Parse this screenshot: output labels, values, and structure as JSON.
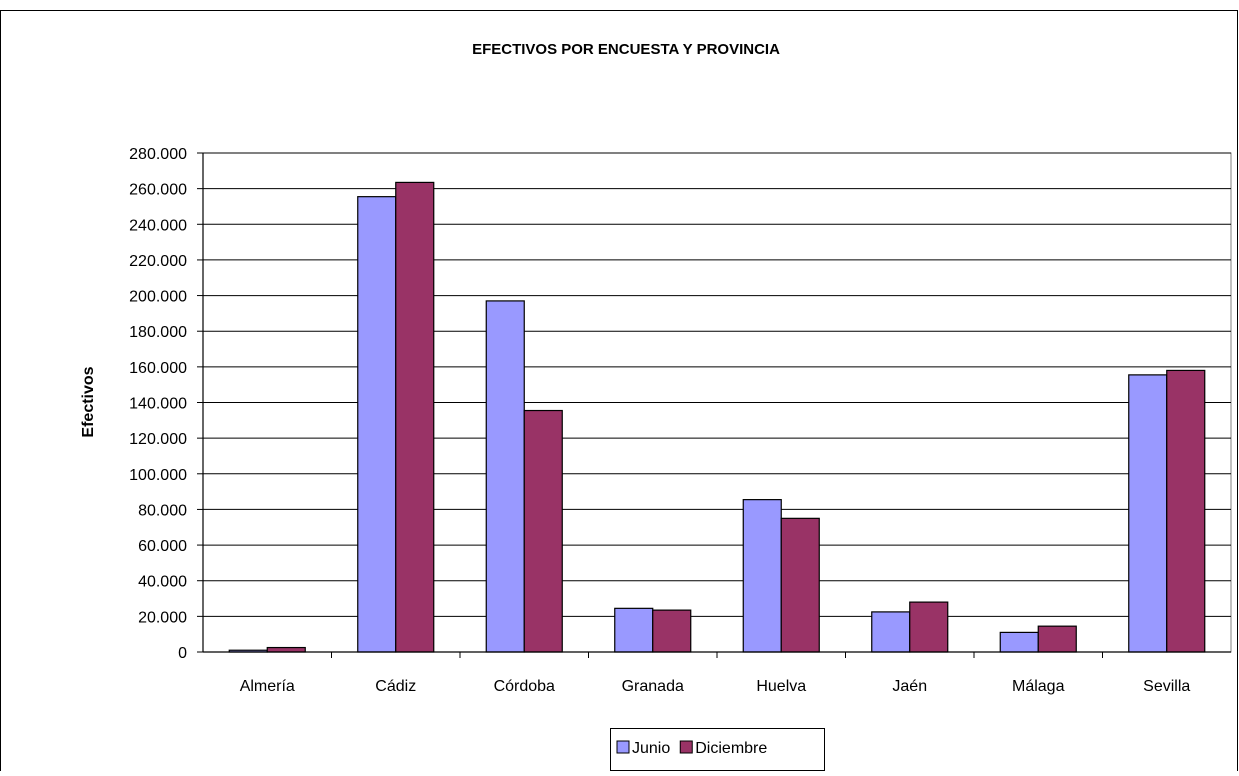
{
  "chart_data": {
    "type": "bar",
    "title": "EFECTIVOS POR ENCUESTA Y PROVINCIA",
    "xlabel": "",
    "ylabel": "Efectivos",
    "categories": [
      "Almería",
      "Cádiz",
      "Córdoba",
      "Granada",
      "Huelva",
      "Jaén",
      "Málaga",
      "Sevilla"
    ],
    "series": [
      {
        "name": "Junio",
        "color": "#9999ff",
        "values": [
          1000,
          255500,
          197000,
          24500,
          85500,
          22500,
          11000,
          155500
        ]
      },
      {
        "name": "Diciembre",
        "color": "#993366",
        "values": [
          2500,
          263500,
          135500,
          23500,
          75000,
          28000,
          14500,
          158000
        ]
      }
    ],
    "ylim": [
      0,
      280000
    ],
    "yticks": [
      "0",
      "20.000",
      "40.000",
      "60.000",
      "80.000",
      "100.000",
      "120.000",
      "140.000",
      "160.000",
      "180.000",
      "200.000",
      "220.000",
      "240.000",
      "260.000",
      "280.000"
    ],
    "grid": true,
    "legend_position": "bottom"
  }
}
